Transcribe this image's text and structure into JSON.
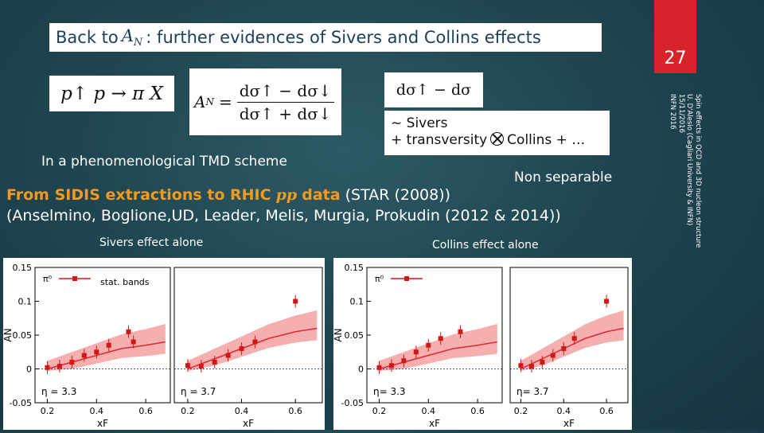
{
  "title": {
    "before": "Back to",
    "symbol": "A",
    "sub": "N",
    "after": ": further evidences of Sivers and Collins effects"
  },
  "slide_number": "27",
  "side_note": {
    "line1": "Spin effects in QCD and 3D nucleon structure",
    "line2": "U. D'Alesio (Cagliari University & INFN)",
    "line3": "15/11/2016",
    "line4": "INFN 2016"
  },
  "formulas": {
    "reaction": "p↑ p → π X",
    "an_lhs": "A",
    "an_sub": "N",
    "an_num": "dσ↑ − dσ↓",
    "an_den": "dσ↑ + dσ↓",
    "diff": "dσ↑ − dσ",
    "sivers_line": "~ Sivers",
    "collins_before": "+ transversity",
    "collins_after": "Collins + …"
  },
  "text": {
    "pheno": "In a phenomenological TMD scheme",
    "non_separable": "Non separable",
    "sidis_bold": "From SIDIS extractions to RHIC",
    "sidis_pp": "pp",
    "sidis_data": "data",
    "sidis_star": "(STAR (2008))",
    "sidis_line2": "(Anselmino, Boglione,UD, Leader, Melis, Murgia, Prokudin (2012 & 2014))",
    "sivers_alone": "Sivers effect alone",
    "collins_alone": "Collins effect alone"
  },
  "colors": {
    "background": "#1f4650",
    "accent_red": "#d8232a",
    "orange": "#f39a1e",
    "band": "#f4a6a6",
    "curve": "#e0282e",
    "point": "#d01818"
  },
  "chart_data": [
    {
      "type": "line",
      "panel": "Sivers, eta=3.3",
      "ylabel": "AN",
      "xlabel": "xF",
      "eta_label": "η = 3.3",
      "legend": "stat. bands",
      "ylim": [
        -0.05,
        0.15
      ],
      "xlim": [
        0.15,
        0.7
      ],
      "yticks": [
        "0.15",
        "0.1",
        "0.05",
        "0",
        "-0.05"
      ],
      "xticks": [
        "0.2",
        "0.4",
        "0.6"
      ],
      "points": [
        [
          0.2,
          0.002
        ],
        [
          0.25,
          0.004
        ],
        [
          0.3,
          0.01
        ],
        [
          0.35,
          0.02
        ],
        [
          0.4,
          0.025
        ],
        [
          0.45,
          0.035
        ],
        [
          0.53,
          0.055
        ],
        [
          0.55,
          0.04
        ]
      ],
      "curve": [
        [
          0.2,
          0.0
        ],
        [
          0.3,
          0.01
        ],
        [
          0.4,
          0.02
        ],
        [
          0.5,
          0.03
        ],
        [
          0.6,
          0.035
        ],
        [
          0.68,
          0.04
        ]
      ]
    },
    {
      "type": "line",
      "panel": "Sivers, eta=3.7",
      "xlabel": "xF",
      "eta_label": "η = 3.7",
      "points": [
        [
          0.2,
          0.005
        ],
        [
          0.25,
          0.004
        ],
        [
          0.3,
          0.01
        ],
        [
          0.35,
          0.02
        ],
        [
          0.4,
          0.03
        ],
        [
          0.45,
          0.04
        ],
        [
          0.6,
          0.1
        ]
      ],
      "curve": [
        [
          0.2,
          0.0
        ],
        [
          0.3,
          0.015
        ],
        [
          0.4,
          0.03
        ],
        [
          0.5,
          0.045
        ],
        [
          0.6,
          0.055
        ],
        [
          0.68,
          0.06
        ]
      ]
    },
    {
      "type": "line",
      "panel": "Collins, eta=3.3",
      "ylabel": "AN",
      "xlabel": "xF",
      "eta_label": "η= 3.3",
      "ylim": [
        -0.05,
        0.15
      ],
      "yticks": [
        "0.15",
        "0.1",
        "0.05",
        "0",
        "-0.05"
      ],
      "xticks": [
        "0.2",
        "0.4",
        "0.6"
      ],
      "points": [
        [
          0.2,
          0.002
        ],
        [
          0.25,
          0.005
        ],
        [
          0.3,
          0.012
        ],
        [
          0.35,
          0.025
        ],
        [
          0.4,
          0.035
        ],
        [
          0.45,
          0.045
        ],
        [
          0.53,
          0.055
        ]
      ],
      "curve": [
        [
          0.2,
          0.0
        ],
        [
          0.3,
          0.01
        ],
        [
          0.4,
          0.02
        ],
        [
          0.5,
          0.03
        ],
        [
          0.6,
          0.035
        ],
        [
          0.68,
          0.04
        ]
      ]
    },
    {
      "type": "line",
      "panel": "Collins, eta=3.7",
      "xlabel": "xF",
      "eta_label": "η= 3.7",
      "xticks": [
        "0.2",
        "0.4",
        "0.6"
      ],
      "points": [
        [
          0.2,
          0.005
        ],
        [
          0.25,
          0.004
        ],
        [
          0.3,
          0.01
        ],
        [
          0.35,
          0.02
        ],
        [
          0.4,
          0.03
        ],
        [
          0.45,
          0.045
        ],
        [
          0.6,
          0.1
        ]
      ],
      "curve": [
        [
          0.2,
          0.0
        ],
        [
          0.3,
          0.015
        ],
        [
          0.4,
          0.03
        ],
        [
          0.5,
          0.045
        ],
        [
          0.6,
          0.055
        ],
        [
          0.68,
          0.06
        ]
      ]
    }
  ]
}
